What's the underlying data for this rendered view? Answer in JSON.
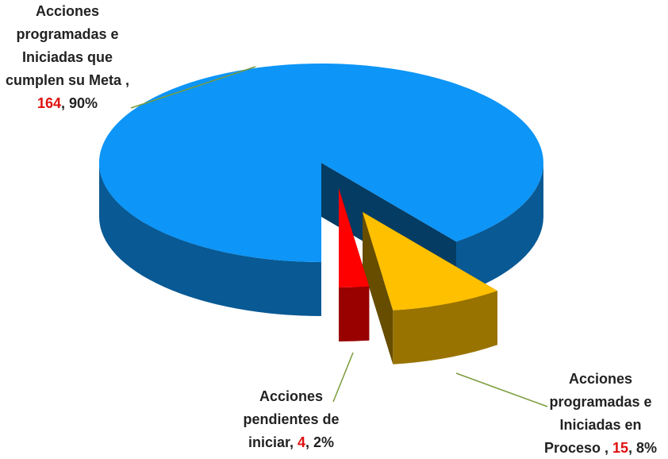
{
  "chart_data": {
    "type": "pie3d",
    "categories": [
      "Acciones programadas e Iniciadas que cumplen su Meta ",
      "Acciones programadas e Iniciadas en Proceso ",
      "Acciones pendientes de iniciar"
    ],
    "values": [
      164,
      15,
      4
    ],
    "percent_labels": [
      "90%",
      "8%",
      "2%"
    ],
    "label_separator": ", ",
    "colors": [
      "#0d95f7",
      "#ffc000",
      "#ff0000"
    ]
  }
}
